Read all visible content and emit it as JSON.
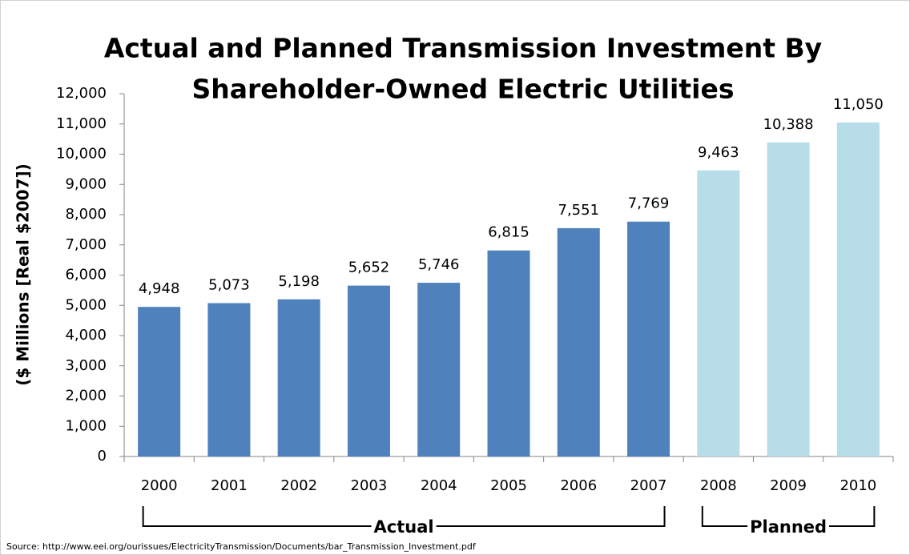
{
  "chart_data": {
    "type": "bar",
    "title": "Actual and Planned Transmission Investment By Shareholder-Owned Electric Utilities",
    "title_lines": [
      "Actual and Planned Transmission Investment By",
      "Shareholder-Owned Electric Utilities"
    ],
    "y_label": "($ Millions [Real $2007])",
    "source": "Source: http://www.eei.org/ourissues/ElectricityTransmission/Documents/bar_Transmission_Investment.pdf",
    "categories": [
      "2000",
      "2001",
      "2002",
      "2003",
      "2004",
      "2005",
      "2006",
      "2007",
      "2008",
      "2009",
      "2010"
    ],
    "series": [
      {
        "name": "Actual",
        "color": "#4f81bd",
        "values": [
          4948,
          5073,
          5198,
          5652,
          5746,
          6815,
          7551,
          7769,
          null,
          null,
          null
        ],
        "value_labels": [
          "4,948",
          "5,073",
          "5,198",
          "5,652",
          "5,746",
          "6,815",
          "7,551",
          "7,769",
          null,
          null,
          null
        ]
      },
      {
        "name": "Planned",
        "color": "#b7dde8",
        "values": [
          null,
          null,
          null,
          null,
          null,
          null,
          null,
          null,
          9463,
          10388,
          11050
        ],
        "value_labels": [
          null,
          null,
          null,
          null,
          null,
          null,
          null,
          null,
          "9,463",
          "10,388",
          "11,050"
        ]
      }
    ],
    "ylim": [
      0,
      12000
    ],
    "yticks": [
      0,
      {
        "value": 1000,
        "label": "1,000"
      },
      {
        "value": 2000,
        "label": "2,000"
      },
      {
        "value": 3000,
        "label": "3,000"
      },
      {
        "value": 4000,
        "label": "4,000"
      },
      {
        "value": 5000,
        "label": "5,000"
      },
      {
        "value": 6000,
        "label": "6,000"
      },
      {
        "value": 7000,
        "label": "7,000"
      },
      {
        "value": 8000,
        "label": "8,000"
      },
      {
        "value": 9000,
        "label": "9,000"
      },
      {
        "value": 10000,
        "label": "10,000"
      },
      {
        "value": 11000,
        "label": "11,000"
      },
      {
        "value": 12000,
        "label": "12,000"
      }
    ],
    "grid": false
  }
}
